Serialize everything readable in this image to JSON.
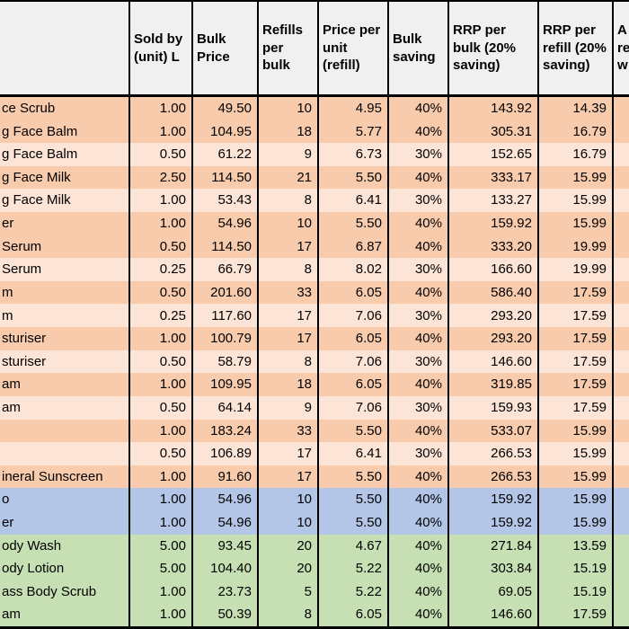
{
  "colors": {
    "header_bg": "#F0F0F0",
    "peach_dark": "#F8CBAD",
    "peach_light": "#FCE4D6",
    "blue": "#B4C6E7",
    "green": "#C6E0B4",
    "border": "#000000"
  },
  "table": {
    "header": {
      "name": "",
      "cols": [
        "Sold by (unit) L",
        "Bulk Price",
        "Refills per bulk",
        "Price per unit (refill)",
        "Bulk saving",
        "RRP per bulk (20% saving)",
        "RRP per refill (20% saving)"
      ],
      "clipped_col": "A\nre\nw"
    },
    "rows": [
      {
        "name": "ce Scrub",
        "sold_by": "1.00",
        "bulk_price": "49.50",
        "refills": "10",
        "price_per_unit": "4.95",
        "bulk_saving": "40%",
        "rrp_bulk": "143.92",
        "rrp_refill": "14.39",
        "shade": "peach_dark"
      },
      {
        "name": "g Face Balm",
        "sold_by": "1.00",
        "bulk_price": "104.95",
        "refills": "18",
        "price_per_unit": "5.77",
        "bulk_saving": "40%",
        "rrp_bulk": "305.31",
        "rrp_refill": "16.79",
        "shade": "peach_dark"
      },
      {
        "name": "g Face Balm",
        "sold_by": "0.50",
        "bulk_price": "61.22",
        "refills": "9",
        "price_per_unit": "6.73",
        "bulk_saving": "30%",
        "rrp_bulk": "152.65",
        "rrp_refill": "16.79",
        "shade": "peach_light"
      },
      {
        "name": "g Face Milk",
        "sold_by": "2.50",
        "bulk_price": "114.50",
        "refills": "21",
        "price_per_unit": "5.50",
        "bulk_saving": "40%",
        "rrp_bulk": "333.17",
        "rrp_refill": "15.99",
        "shade": "peach_dark"
      },
      {
        "name": "g Face Milk",
        "sold_by": "1.00",
        "bulk_price": "53.43",
        "refills": "8",
        "price_per_unit": "6.41",
        "bulk_saving": "30%",
        "rrp_bulk": "133.27",
        "rrp_refill": "15.99",
        "shade": "peach_light"
      },
      {
        "name": "er",
        "sold_by": "1.00",
        "bulk_price": "54.96",
        "refills": "10",
        "price_per_unit": "5.50",
        "bulk_saving": "40%",
        "rrp_bulk": "159.92",
        "rrp_refill": "15.99",
        "shade": "peach_dark"
      },
      {
        "name": "Serum",
        "sold_by": "0.50",
        "bulk_price": "114.50",
        "refills": "17",
        "price_per_unit": "6.87",
        "bulk_saving": "40%",
        "rrp_bulk": "333.20",
        "rrp_refill": "19.99",
        "shade": "peach_dark"
      },
      {
        "name": "Serum",
        "sold_by": "0.25",
        "bulk_price": "66.79",
        "refills": "8",
        "price_per_unit": "8.02",
        "bulk_saving": "30%",
        "rrp_bulk": "166.60",
        "rrp_refill": "19.99",
        "shade": "peach_light"
      },
      {
        "name": "m",
        "sold_by": "0.50",
        "bulk_price": "201.60",
        "refills": "33",
        "price_per_unit": "6.05",
        "bulk_saving": "40%",
        "rrp_bulk": "586.40",
        "rrp_refill": "17.59",
        "shade": "peach_dark"
      },
      {
        "name": "m",
        "sold_by": "0.25",
        "bulk_price": "117.60",
        "refills": "17",
        "price_per_unit": "7.06",
        "bulk_saving": "30%",
        "rrp_bulk": "293.20",
        "rrp_refill": "17.59",
        "shade": "peach_light"
      },
      {
        "name": "sturiser",
        "sold_by": "1.00",
        "bulk_price": "100.79",
        "refills": "17",
        "price_per_unit": "6.05",
        "bulk_saving": "40%",
        "rrp_bulk": "293.20",
        "rrp_refill": "17.59",
        "shade": "peach_dark"
      },
      {
        "name": "sturiser",
        "sold_by": "0.50",
        "bulk_price": "58.79",
        "refills": "8",
        "price_per_unit": "7.06",
        "bulk_saving": "30%",
        "rrp_bulk": "146.60",
        "rrp_refill": "17.59",
        "shade": "peach_light"
      },
      {
        "name": "am",
        "sold_by": "1.00",
        "bulk_price": "109.95",
        "refills": "18",
        "price_per_unit": "6.05",
        "bulk_saving": "40%",
        "rrp_bulk": "319.85",
        "rrp_refill": "17.59",
        "shade": "peach_dark"
      },
      {
        "name": "am",
        "sold_by": "0.50",
        "bulk_price": "64.14",
        "refills": "9",
        "price_per_unit": "7.06",
        "bulk_saving": "30%",
        "rrp_bulk": "159.93",
        "rrp_refill": "17.59",
        "shade": "peach_light"
      },
      {
        "name": "",
        "sold_by": "1.00",
        "bulk_price": "183.24",
        "refills": "33",
        "price_per_unit": "5.50",
        "bulk_saving": "40%",
        "rrp_bulk": "533.07",
        "rrp_refill": "15.99",
        "shade": "peach_dark"
      },
      {
        "name": "",
        "sold_by": "0.50",
        "bulk_price": "106.89",
        "refills": "17",
        "price_per_unit": "6.41",
        "bulk_saving": "30%",
        "rrp_bulk": "266.53",
        "rrp_refill": "15.99",
        "shade": "peach_light"
      },
      {
        "name": "ineral Sunscreen",
        "sold_by": "1.00",
        "bulk_price": "91.60",
        "refills": "17",
        "price_per_unit": "5.50",
        "bulk_saving": "40%",
        "rrp_bulk": "266.53",
        "rrp_refill": "15.99",
        "shade": "peach_dark"
      },
      {
        "name": "o",
        "sold_by": "1.00",
        "bulk_price": "54.96",
        "refills": "10",
        "price_per_unit": "5.50",
        "bulk_saving": "40%",
        "rrp_bulk": "159.92",
        "rrp_refill": "15.99",
        "shade": "blue"
      },
      {
        "name": "er",
        "sold_by": "1.00",
        "bulk_price": "54.96",
        "refills": "10",
        "price_per_unit": "5.50",
        "bulk_saving": "40%",
        "rrp_bulk": "159.92",
        "rrp_refill": "15.99",
        "shade": "blue"
      },
      {
        "name": "ody Wash",
        "sold_by": "5.00",
        "bulk_price": "93.45",
        "refills": "20",
        "price_per_unit": "4.67",
        "bulk_saving": "40%",
        "rrp_bulk": "271.84",
        "rrp_refill": "13.59",
        "shade": "green"
      },
      {
        "name": "ody Lotion",
        "sold_by": "5.00",
        "bulk_price": "104.40",
        "refills": "20",
        "price_per_unit": "5.22",
        "bulk_saving": "40%",
        "rrp_bulk": "303.84",
        "rrp_refill": "15.19",
        "shade": "green"
      },
      {
        "name": "ass Body Scrub",
        "sold_by": "1.00",
        "bulk_price": "23.73",
        "refills": "5",
        "price_per_unit": "5.22",
        "bulk_saving": "40%",
        "rrp_bulk": "69.05",
        "rrp_refill": "15.19",
        "shade": "green"
      },
      {
        "name": "am",
        "sold_by": "1.00",
        "bulk_price": "50.39",
        "refills": "8",
        "price_per_unit": "6.05",
        "bulk_saving": "40%",
        "rrp_bulk": "146.60",
        "rrp_refill": "17.59",
        "shade": "green"
      }
    ]
  }
}
